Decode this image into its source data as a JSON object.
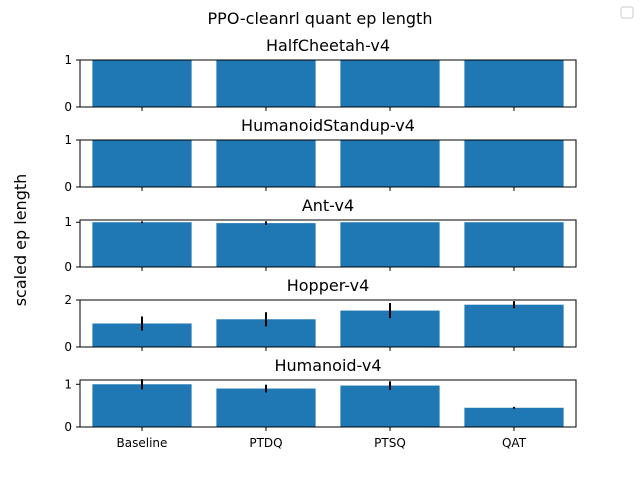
{
  "figure": {
    "suptitle": "PPO-cleanrl quant ep length",
    "ylabel": "scaled ep length"
  },
  "chart_data": [
    {
      "type": "bar",
      "title": "HalfCheetah-v4",
      "categories": [
        "Baseline",
        "PTDQ",
        "PTSQ",
        "QAT"
      ],
      "values": [
        1.0,
        1.0,
        1.0,
        1.0
      ],
      "errors": [
        0.0,
        0.0,
        0.0,
        0.0
      ],
      "ylim": [
        0,
        1.0
      ],
      "yticks": [
        0,
        1
      ],
      "color": "#1f77b4"
    },
    {
      "type": "bar",
      "title": "HumanoidStandup-v4",
      "categories": [
        "Baseline",
        "PTDQ",
        "PTSQ",
        "QAT"
      ],
      "values": [
        1.0,
        1.0,
        1.0,
        1.0
      ],
      "errors": [
        0.0,
        0.0,
        0.0,
        0.0
      ],
      "ylim": [
        0,
        1.0
      ],
      "yticks": [
        0,
        1
      ],
      "color": "#1f77b4"
    },
    {
      "type": "bar",
      "title": "Ant-v4",
      "categories": [
        "Baseline",
        "PTDQ",
        "PTSQ",
        "QAT"
      ],
      "values": [
        1.0,
        0.98,
        1.0,
        1.0
      ],
      "errors": [
        0.02,
        0.04,
        0.0,
        0.0
      ],
      "ylim": [
        0,
        1.05
      ],
      "yticks": [
        0,
        1
      ],
      "color": "#1f77b4"
    },
    {
      "type": "bar",
      "title": "Hopper-v4",
      "categories": [
        "Baseline",
        "PTDQ",
        "PTSQ",
        "QAT"
      ],
      "values": [
        1.0,
        1.18,
        1.55,
        1.8
      ],
      "errors": [
        0.3,
        0.3,
        0.32,
        0.15
      ],
      "ylim": [
        0,
        2.0
      ],
      "yticks": [
        0,
        2
      ],
      "color": "#1f77b4"
    },
    {
      "type": "bar",
      "title": "Humanoid-v4",
      "categories": [
        "Baseline",
        "PTDQ",
        "PTSQ",
        "QAT"
      ],
      "values": [
        1.0,
        0.9,
        0.97,
        0.45
      ],
      "errors": [
        0.12,
        0.09,
        0.1,
        0.02
      ],
      "ylim": [
        0,
        1.1
      ],
      "yticks": [
        0,
        1
      ],
      "color": "#1f77b4"
    }
  ]
}
